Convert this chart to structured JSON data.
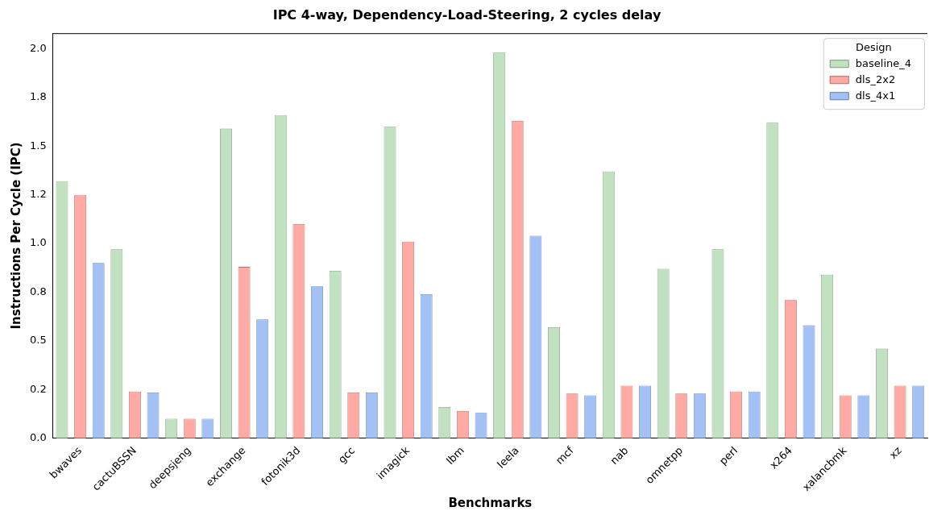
{
  "chart_data": {
    "type": "bar",
    "title": "IPC 4-way, Dependency-Load-Steering, 2 cycles delay",
    "xlabel": "Benchmarks",
    "ylabel": "Instructions Per Cycle (IPC)",
    "legend_title": "Design",
    "legend": "top right",
    "grid": false,
    "categories": [
      "bwaves",
      "cactuBSSN",
      "deepsjeng",
      "exchange",
      "fotonik3d",
      "gcc",
      "imagick",
      "lbm",
      "leela",
      "mcf",
      "nab",
      "omnetpp",
      "perl",
      "x264",
      "xalancbmk",
      "xz"
    ],
    "ylim": [
      0,
      2.08
    ],
    "yticks": [
      {
        "value": 0,
        "label": "0.0"
      },
      {
        "value": 0.25,
        "label": "0.2"
      },
      {
        "value": 0.5,
        "label": "0.5"
      },
      {
        "value": 0.75,
        "label": "0.8"
      },
      {
        "value": 1,
        "label": "1.0"
      },
      {
        "value": 1.25,
        "label": "1.2"
      },
      {
        "value": 1.5,
        "label": "1.5"
      },
      {
        "value": 1.75,
        "label": "1.8"
      },
      {
        "value": 2,
        "label": "2.0"
      }
    ],
    "series": [
      {
        "name": "baseline_4",
        "color": "#c1e1c1",
        "values": [
          1.32,
          0.97,
          0.1,
          1.59,
          1.66,
          0.86,
          1.6,
          0.16,
          1.98,
          0.57,
          1.37,
          0.87,
          0.97,
          1.62,
          0.84,
          0.46
        ]
      },
      {
        "name": "dls_2x2",
        "color": "#ffaaa5",
        "values": [
          1.25,
          0.24,
          0.1,
          0.88,
          1.1,
          0.235,
          1.01,
          0.14,
          1.63,
          0.23,
          0.27,
          0.23,
          0.24,
          0.71,
          0.22,
          0.27
        ]
      },
      {
        "name": "dls_4x1",
        "color": "#a3c1f5",
        "values": [
          0.9,
          0.235,
          0.1,
          0.61,
          0.78,
          0.235,
          0.74,
          0.13,
          1.04,
          0.22,
          0.27,
          0.23,
          0.24,
          0.58,
          0.22,
          0.27
        ]
      }
    ]
  }
}
